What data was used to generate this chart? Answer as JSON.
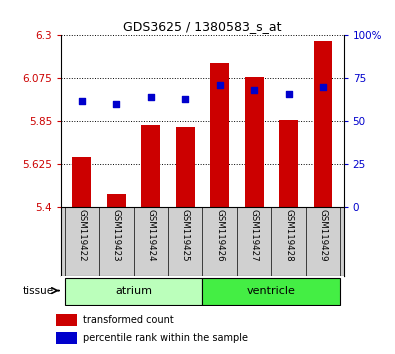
{
  "title": "GDS3625 / 1380583_s_at",
  "samples": [
    "GSM119422",
    "GSM119423",
    "GSM119424",
    "GSM119425",
    "GSM119426",
    "GSM119427",
    "GSM119428",
    "GSM119429"
  ],
  "bar_values": [
    5.66,
    5.47,
    5.83,
    5.82,
    6.155,
    6.08,
    5.855,
    6.27
  ],
  "bar_bottom": 5.4,
  "percentile_values": [
    62,
    60,
    64,
    63,
    71,
    68,
    66,
    70
  ],
  "ylim_left": [
    5.4,
    6.3
  ],
  "ylim_right": [
    0,
    100
  ],
  "yticks_left": [
    5.4,
    5.625,
    5.85,
    6.075,
    6.3
  ],
  "ytick_labels_left": [
    "5.4",
    "5.625",
    "5.85",
    "6.075",
    "6.3"
  ],
  "yticks_right": [
    0,
    25,
    50,
    75,
    100
  ],
  "ytick_labels_right": [
    "0",
    "25",
    "50",
    "75",
    "100%"
  ],
  "bar_color": "#cc0000",
  "dot_color": "#0000cc",
  "tissue_groups": [
    {
      "label": "atrium",
      "samples": [
        0,
        1,
        2,
        3
      ],
      "color": "#bbffbb"
    },
    {
      "label": "ventricle",
      "samples": [
        4,
        5,
        6,
        7
      ],
      "color": "#44ee44"
    }
  ],
  "tissue_label": "tissue",
  "legend_bar_label": "transformed count",
  "legend_dot_label": "percentile rank within the sample",
  "background_color": "#ffffff",
  "plot_bg": "#ffffff",
  "xlabel_bg": "#d0d0d0",
  "bar_width": 0.55
}
